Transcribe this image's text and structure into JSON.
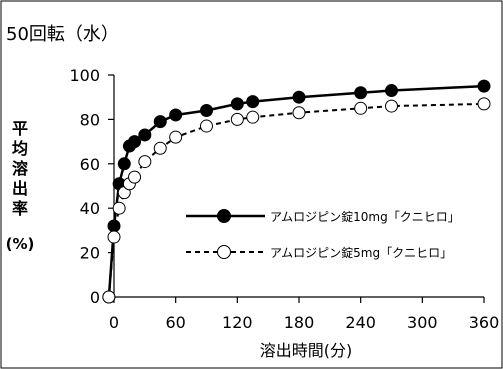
{
  "chart_data": {
    "type": "line",
    "title": "50回転（水）",
    "xlabel": "溶出時間(分)",
    "ylabel_chars": [
      "平",
      "均",
      "溶",
      "出",
      "率"
    ],
    "ylabel_unit": "(%)",
    "xlim": [
      0,
      360
    ],
    "ylim": [
      0,
      100
    ],
    "x_ticks": [
      0,
      60,
      120,
      180,
      240,
      300,
      360
    ],
    "y_ticks": [
      0,
      20,
      40,
      60,
      80,
      100
    ],
    "grid": false,
    "legend_position": "center-right",
    "series": [
      {
        "name": "アムロジピン錠10mg「クニヒロ」",
        "style": "solid",
        "marker": "filled-circle",
        "color": "#000000",
        "x": [
          -5,
          0,
          5,
          10,
          15,
          20,
          30,
          45,
          60,
          90,
          120,
          135,
          180,
          240,
          270,
          360
        ],
        "y": [
          0,
          32,
          51,
          60,
          68,
          70,
          73,
          79,
          82,
          84,
          87,
          88,
          90,
          92,
          93,
          95
        ]
      },
      {
        "name": "アムロジピン錠5mg「クニヒロ」",
        "style": "dashed",
        "marker": "open-circle",
        "color": "#000000",
        "x": [
          -5,
          0,
          5,
          10,
          15,
          20,
          30,
          45,
          60,
          90,
          120,
          135,
          180,
          240,
          270,
          360
        ],
        "y": [
          0,
          27,
          40,
          47,
          51,
          54,
          61,
          67,
          72,
          77,
          80,
          81,
          83,
          85,
          86,
          87
        ]
      }
    ]
  }
}
